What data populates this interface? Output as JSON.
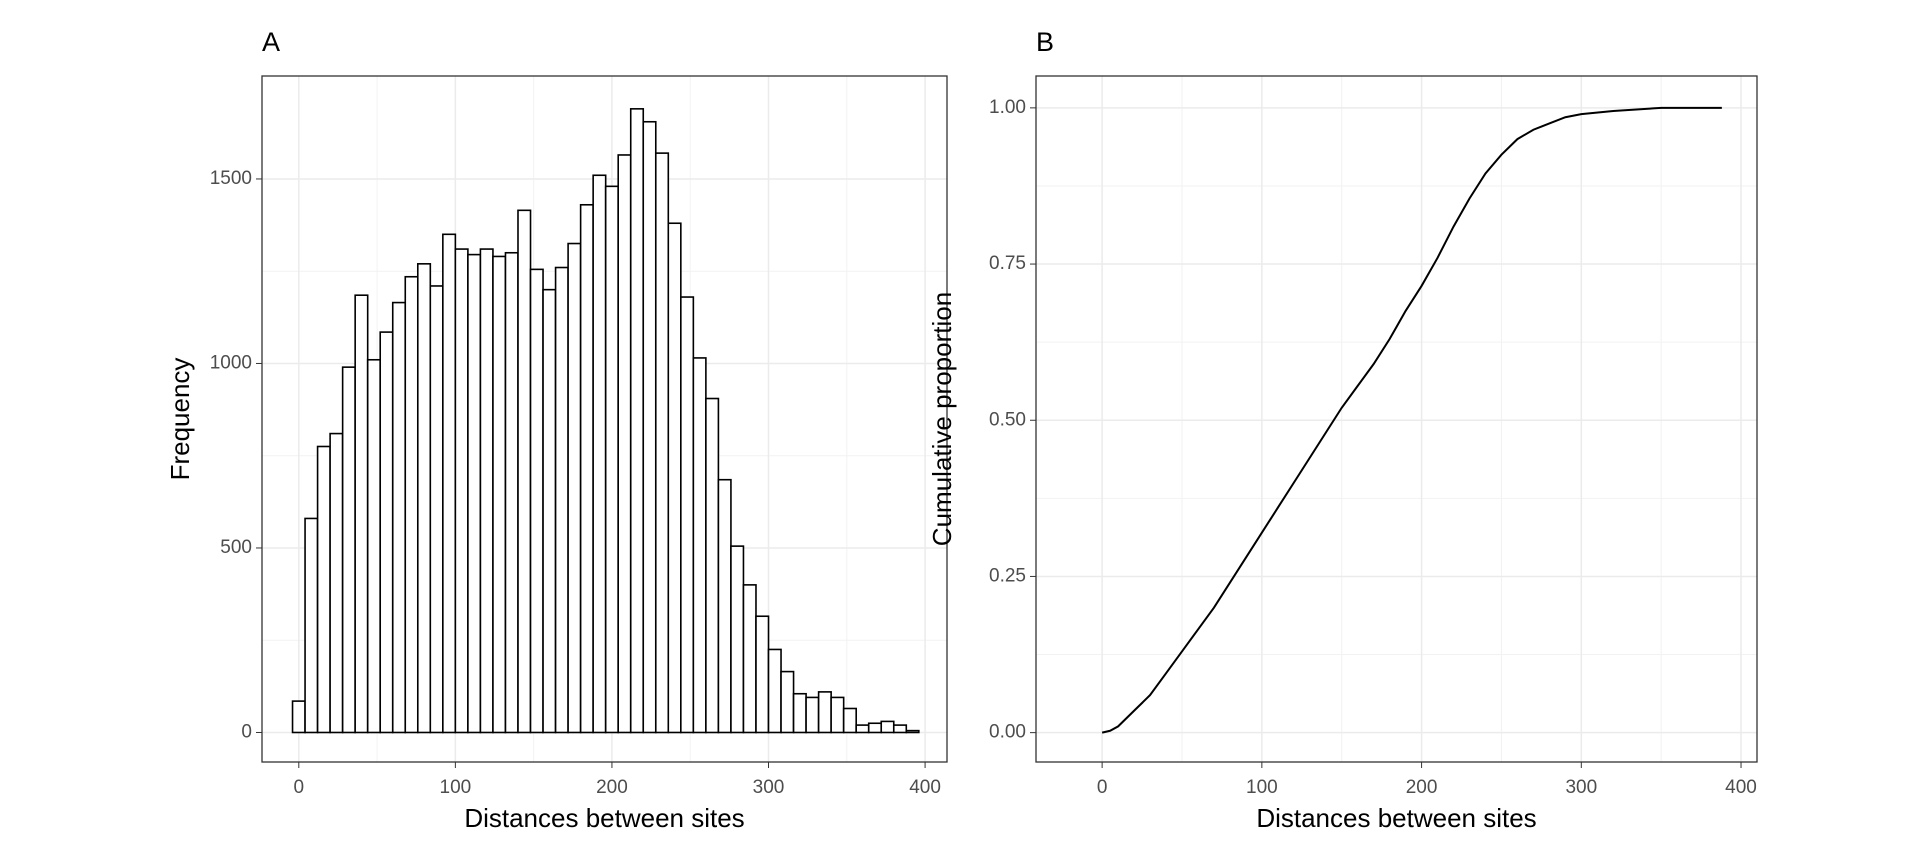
{
  "chart_data": [
    {
      "type": "histogram",
      "title": "A",
      "xlabel": "Distances between sites",
      "ylabel": "Frequency",
      "bins": [
        -4,
        4,
        12,
        20,
        28,
        36,
        44,
        52,
        60,
        68,
        76,
        84,
        92,
        100,
        108,
        116,
        124,
        132,
        140,
        148,
        156,
        164,
        172,
        180,
        188,
        196,
        204,
        212,
        220,
        228,
        236,
        244,
        252,
        260,
        268,
        276,
        284,
        292,
        300,
        308,
        316,
        324,
        332,
        340,
        348,
        356,
        364,
        372,
        380,
        388,
        396
      ],
      "values": [
        85,
        580,
        775,
        810,
        990,
        1185,
        1010,
        1085,
        1165,
        1235,
        1270,
        1210,
        1350,
        1310,
        1295,
        1310,
        1290,
        1300,
        1415,
        1255,
        1200,
        1260,
        1325,
        1430,
        1510,
        1480,
        1565,
        1690,
        1655,
        1570,
        1380,
        1180,
        1015,
        905,
        685,
        505,
        400,
        315,
        225,
        165,
        105,
        95,
        110,
        95,
        65,
        20,
        25,
        30,
        20,
        5
      ],
      "fill": "#ffffff",
      "edgecolor": "#000000",
      "xlim": [
        -23.5,
        414
      ],
      "ylim": [
        -80,
        1779
      ],
      "xticks": [
        0,
        100,
        200,
        300,
        400
      ],
      "yticks": [
        0,
        500,
        1000,
        1500
      ],
      "grid": true
    },
    {
      "type": "line",
      "title": "B",
      "xlabel": "Distances between sites",
      "ylabel": "Cumulative proportion",
      "x": [
        0,
        5,
        10,
        20,
        30,
        40,
        50,
        60,
        70,
        80,
        90,
        100,
        110,
        120,
        130,
        140,
        150,
        160,
        170,
        180,
        190,
        200,
        210,
        220,
        230,
        240,
        250,
        260,
        270,
        280,
        290,
        300,
        320,
        350,
        388
      ],
      "values": [
        0,
        0.003,
        0.01,
        0.035,
        0.06,
        0.095,
        0.13,
        0.165,
        0.2,
        0.24,
        0.28,
        0.32,
        0.36,
        0.4,
        0.44,
        0.48,
        0.52,
        0.555,
        0.59,
        0.63,
        0.675,
        0.715,
        0.76,
        0.81,
        0.855,
        0.895,
        0.925,
        0.95,
        0.965,
        0.975,
        0.985,
        0.99,
        0.995,
        1.0,
        1.0
      ],
      "color": "#000000",
      "xlim": [
        -41.4,
        410
      ],
      "ylim": [
        -0.047,
        1.051
      ],
      "xticks": [
        0,
        100,
        200,
        300,
        400
      ],
      "yticks": [
        {
          "value": 0,
          "label": "0.00"
        },
        {
          "value": 0.25,
          "label": "0.25"
        },
        {
          "value": 0.5,
          "label": "0.50"
        },
        {
          "value": 0.75,
          "label": "0.75"
        },
        {
          "value": 1,
          "label": "1.00"
        }
      ],
      "grid": true
    }
  ]
}
